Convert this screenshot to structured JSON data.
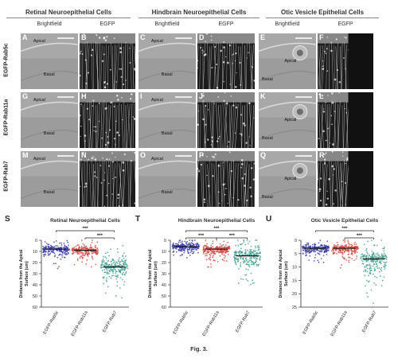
{
  "sections": [
    {
      "title": "Retinal Neuroepithelial Cells"
    },
    {
      "title": "Hindbrain Neuroepithelial Cells"
    },
    {
      "title": "Otic Vesicle Epithelial Cells"
    }
  ],
  "columns": [
    "Brightfield",
    "EGFP",
    "Brightfield",
    "EGFP",
    "Brightfield",
    "EGFP"
  ],
  "rows": [
    "EGFP-Rab5c",
    "EGFP-Rab11a",
    "EGFP-Rab7"
  ],
  "panels": [
    {
      "letter": "A",
      "type": "bf",
      "labels": [
        "Apical",
        "Basal"
      ]
    },
    {
      "letter": "B",
      "type": "egfp",
      "labels": []
    },
    {
      "letter": "C",
      "type": "bf",
      "labels": [
        "Apical",
        "Basal"
      ]
    },
    {
      "letter": "D",
      "type": "egfp",
      "labels": []
    },
    {
      "letter": "E",
      "type": "bf",
      "labels": [
        "Apical",
        "Basal"
      ]
    },
    {
      "letter": "F",
      "type": "egfp",
      "labels": []
    },
    {
      "letter": "G",
      "type": "bf",
      "labels": [
        "Apical",
        "Basal"
      ]
    },
    {
      "letter": "H",
      "type": "egfp",
      "labels": []
    },
    {
      "letter": "I",
      "type": "bf",
      "labels": [
        "Apical",
        "Basal"
      ]
    },
    {
      "letter": "J",
      "type": "egfp",
      "labels": []
    },
    {
      "letter": "K",
      "type": "bf",
      "labels": [
        "Apical",
        "Basal"
      ]
    },
    {
      "letter": "L",
      "type": "egfp",
      "labels": []
    },
    {
      "letter": "M",
      "type": "bf",
      "labels": [
        "Apical",
        "Basal"
      ]
    },
    {
      "letter": "N",
      "type": "egfp",
      "labels": []
    },
    {
      "letter": "O",
      "type": "bf",
      "labels": [
        "Apical",
        "Basal"
      ]
    },
    {
      "letter": "P",
      "type": "egfp",
      "labels": []
    },
    {
      "letter": "Q",
      "type": "bf",
      "labels": [
        "Apical",
        "Basal"
      ]
    },
    {
      "letter": "R",
      "type": "egfp",
      "labels": []
    }
  ],
  "colors": {
    "rab5c": "#3a3aa8",
    "rab11a": "#d0473f",
    "rab7": "#3f9e8e",
    "bar": "#111111"
  },
  "chart_data": [
    {
      "letter": "S",
      "type": "scatter",
      "title": "Retinal Neuroepithelial Cells",
      "ylabel": "Distance from the Apical Surface (um)",
      "categories": [
        "EGFP-Rab5c",
        "EGFP-Rab11a",
        "EGFP-Rab7"
      ],
      "ylim": [
        0,
        60
      ],
      "yticks": [
        0,
        10,
        20,
        30,
        40,
        50,
        60
      ],
      "y_inverted": true,
      "means": [
        8,
        9,
        24
      ],
      "significance": [
        {
          "from": 0,
          "to": 2,
          "label": "***"
        },
        {
          "from": 1,
          "to": 2,
          "label": "***"
        }
      ]
    },
    {
      "letter": "T",
      "type": "scatter",
      "title": "Hindbrain Neuroepithelial Cells",
      "ylabel": "Distance from the Apical Surface (um)",
      "categories": [
        "EGFP-Rab5c",
        "EGFP-Rab11a",
        "EGFP-Rab7"
      ],
      "ylim": [
        0,
        60
      ],
      "yticks": [
        0,
        10,
        20,
        30,
        40,
        50,
        60
      ],
      "y_inverted": true,
      "means": [
        6,
        8,
        14
      ],
      "significance": [
        {
          "from": 0,
          "to": 2,
          "label": "***"
        },
        {
          "from": 0,
          "to": 1,
          "label": "***"
        },
        {
          "from": 1,
          "to": 2,
          "label": "***"
        }
      ]
    },
    {
      "letter": "U",
      "type": "scatter",
      "title": "Otic Vesicle Epithelial Cells",
      "ylabel": "Distance from the Apical Surface (um)",
      "categories": [
        "EGFP-Rab5c",
        "EGFP-Rab11a",
        "EGFP-Rab7"
      ],
      "ylim": [
        0,
        25
      ],
      "yticks": [
        0,
        5,
        10,
        15,
        20,
        25
      ],
      "y_inverted": true,
      "means": [
        3,
        3,
        7
      ],
      "significance": [
        {
          "from": 0,
          "to": 2,
          "label": "***"
        },
        {
          "from": 1,
          "to": 2,
          "label": "***"
        }
      ]
    }
  ],
  "caption": "Fig. 3."
}
